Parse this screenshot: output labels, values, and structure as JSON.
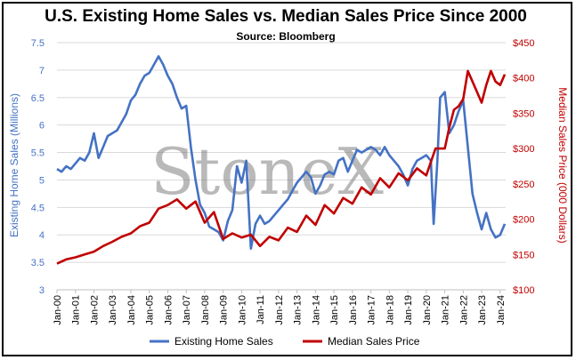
{
  "chart_data": {
    "type": "line",
    "title": "U.S. Existing Home Sales vs. Median Sales Price Since 2000",
    "subtitle": "Source: Bloomberg",
    "watermark": "StoneX",
    "ylabel": "Existing Home Sales (Millions)",
    "y2label": "Median Sales Price (000 Dollars)",
    "ylim": [
      3,
      7.5
    ],
    "y2lim": [
      100,
      450
    ],
    "yticks": [
      "3",
      "3.5",
      "4",
      "4.5",
      "5",
      "5.5",
      "6",
      "6.5",
      "7",
      "7.5"
    ],
    "y2ticks": [
      "$100",
      "$150",
      "$200",
      "$250",
      "$300",
      "$350",
      "$400",
      "$450"
    ],
    "xticks": [
      "Jan-00",
      "Jan-01",
      "Jan-02",
      "Jan-03",
      "Jan-04",
      "Jan-05",
      "Jan-06",
      "Jan-07",
      "Jan-08",
      "Jan-09",
      "Jan-10",
      "Jan-11",
      "Jan-12",
      "Jan-13",
      "Jan-14",
      "Jan-15",
      "Jan-16",
      "Jan-17",
      "Jan-18",
      "Jan-19",
      "Jan-20",
      "Jan-21",
      "Jan-22",
      "Jan-23",
      "Jan-24"
    ],
    "gridlines": true,
    "legend_position": "bottom",
    "colors": {
      "sales": "#4472C4",
      "price": "#C00000",
      "grid": "#D9D9D9"
    },
    "series": [
      {
        "name": "Existing Home Sales",
        "axis": "left",
        "x": [
          2000.0,
          2000.25,
          2000.5,
          2000.75,
          2001.0,
          2001.25,
          2001.5,
          2001.75,
          2002.0,
          2002.25,
          2002.5,
          2002.75,
          2003.0,
          2003.25,
          2003.5,
          2003.75,
          2004.0,
          2004.25,
          2004.5,
          2004.75,
          2005.0,
          2005.25,
          2005.5,
          2005.75,
          2006.0,
          2006.25,
          2006.5,
          2006.75,
          2007.0,
          2007.25,
          2007.5,
          2007.75,
          2008.0,
          2008.25,
          2008.5,
          2008.75,
          2009.0,
          2009.25,
          2009.5,
          2009.75,
          2010.0,
          2010.25,
          2010.5,
          2010.75,
          2011.0,
          2011.25,
          2011.5,
          2011.75,
          2012.0,
          2012.25,
          2012.5,
          2012.75,
          2013.0,
          2013.25,
          2013.5,
          2013.75,
          2014.0,
          2014.25,
          2014.5,
          2014.75,
          2015.0,
          2015.25,
          2015.5,
          2015.75,
          2016.0,
          2016.25,
          2016.5,
          2016.75,
          2017.0,
          2017.25,
          2017.5,
          2017.75,
          2018.0,
          2018.25,
          2018.5,
          2018.75,
          2019.0,
          2019.25,
          2019.5,
          2019.75,
          2020.0,
          2020.25,
          2020.4,
          2020.6,
          2020.75,
          2021.0,
          2021.25,
          2021.5,
          2021.75,
          2022.0,
          2022.25,
          2022.5,
          2022.75,
          2023.0,
          2023.25,
          2023.5,
          2023.75,
          2024.0,
          2024.25
        ],
        "values": [
          5.2,
          5.15,
          5.25,
          5.2,
          5.3,
          5.4,
          5.35,
          5.5,
          5.85,
          5.4,
          5.6,
          5.8,
          5.85,
          5.9,
          6.05,
          6.2,
          6.45,
          6.55,
          6.75,
          6.9,
          6.95,
          7.1,
          7.25,
          7.1,
          6.9,
          6.75,
          6.5,
          6.3,
          6.35,
          5.6,
          5.0,
          4.55,
          4.4,
          4.15,
          4.1,
          4.05,
          3.9,
          4.25,
          4.45,
          5.25,
          4.95,
          5.35,
          3.75,
          4.2,
          4.35,
          4.2,
          4.25,
          4.35,
          4.45,
          4.55,
          4.65,
          4.8,
          4.95,
          5.05,
          5.15,
          5.05,
          4.75,
          4.9,
          5.1,
          5.15,
          5.1,
          5.35,
          5.4,
          5.15,
          5.35,
          5.55,
          5.5,
          5.55,
          5.6,
          5.55,
          5.45,
          5.6,
          5.45,
          5.35,
          5.25,
          5.1,
          4.9,
          5.2,
          5.35,
          5.4,
          5.45,
          5.35,
          4.2,
          5.35,
          6.5,
          6.6,
          5.85,
          6.0,
          6.25,
          6.45,
          5.6,
          4.75,
          4.4,
          4.1,
          4.4,
          4.1,
          3.95,
          4.0,
          4.2
        ]
      },
      {
        "name": "Median Sales Price",
        "axis": "right",
        "x": [
          2000.0,
          2000.5,
          2001.0,
          2001.5,
          2002.0,
          2002.5,
          2003.0,
          2003.5,
          2004.0,
          2004.5,
          2005.0,
          2005.5,
          2006.0,
          2006.5,
          2007.0,
          2007.5,
          2008.0,
          2008.5,
          2009.0,
          2009.5,
          2010.0,
          2010.5,
          2011.0,
          2011.5,
          2012.0,
          2012.5,
          2013.0,
          2013.5,
          2014.0,
          2014.5,
          2015.0,
          2015.5,
          2016.0,
          2016.5,
          2017.0,
          2017.5,
          2018.0,
          2018.5,
          2019.0,
          2019.5,
          2020.0,
          2020.5,
          2021.0,
          2021.25,
          2021.5,
          2021.75,
          2022.0,
          2022.25,
          2022.5,
          2022.75,
          2023.0,
          2023.25,
          2023.5,
          2023.75,
          2024.0,
          2024.25
        ],
        "values": [
          137,
          143,
          146,
          150,
          154,
          162,
          168,
          175,
          180,
          190,
          195,
          215,
          220,
          228,
          215,
          225,
          195,
          210,
          172,
          180,
          174,
          178,
          162,
          175,
          170,
          188,
          182,
          205,
          192,
          220,
          208,
          230,
          222,
          245,
          235,
          258,
          245,
          265,
          255,
          272,
          262,
          300,
          300,
          330,
          355,
          360,
          370,
          410,
          395,
          380,
          365,
          390,
          410,
          395,
          390,
          405
        ]
      }
    ]
  }
}
